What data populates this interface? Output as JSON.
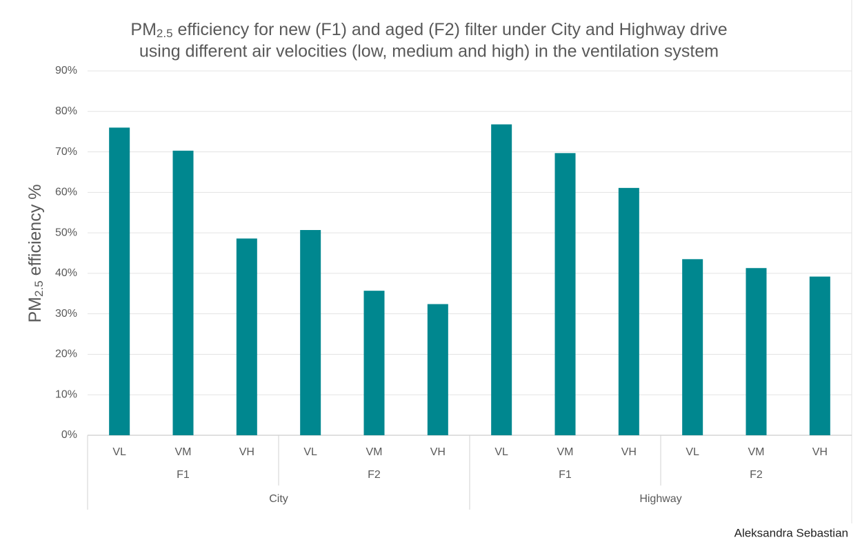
{
  "chart_data": {
    "type": "bar",
    "title": {
      "prefix": "PM",
      "sub": "2.5",
      "line1": " efficiency for new (F1) and aged (F2) filter under City and Highway drive",
      "line2": "using different air velocities (low, medium and high) in the ventilation system"
    },
    "y_label": {
      "prefix": "PM",
      "sub": "2.5",
      "rest": " efficiency %"
    },
    "categories": [
      "VL",
      "VM",
      "VH",
      "VL",
      "VM",
      "VH",
      "VL",
      "VM",
      "VH",
      "VL",
      "VM",
      "VH"
    ],
    "groups": [
      "F1",
      "F2",
      "F1",
      "F2"
    ],
    "super_groups": [
      "City",
      "Highway"
    ],
    "values": [
      76,
      70.3,
      48.6,
      50.7,
      35.7,
      32.4,
      76.8,
      69.7,
      61.1,
      43.5,
      41.3,
      39.2
    ],
    "color": "#00878f",
    "ylim": [
      0,
      90
    ],
    "yticks": [
      {
        "value": 0,
        "label": "0%"
      },
      {
        "value": 10,
        "label": "10%"
      },
      {
        "value": 20,
        "label": "20%"
      },
      {
        "value": 30,
        "label": "30%"
      },
      {
        "value": 40,
        "label": "40%"
      },
      {
        "value": 50,
        "label": "50%"
      },
      {
        "value": 60,
        "label": "60%"
      },
      {
        "value": 70,
        "label": "70%"
      },
      {
        "value": 80,
        "label": "80%"
      },
      {
        "value": 90,
        "label": "90%"
      }
    ],
    "grid": true,
    "credit": "Aleksandra Sebastian"
  }
}
